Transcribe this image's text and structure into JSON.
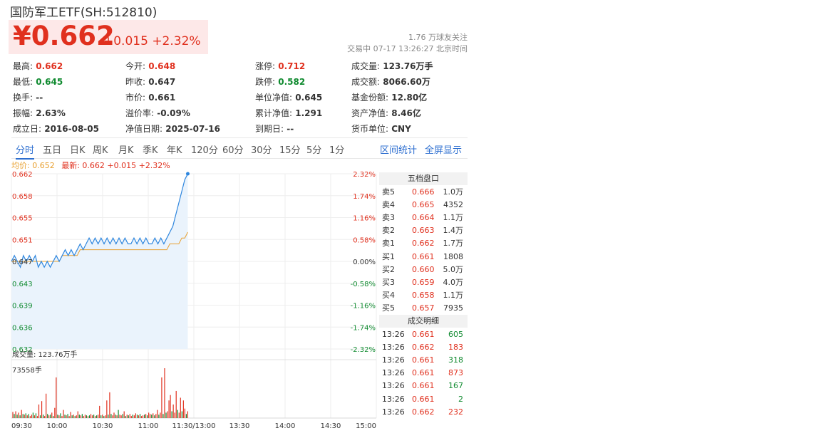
{
  "header": {
    "title": "国防军工ETF(SH:512810)",
    "price": "¥0.662",
    "change": "+0.015 +2.32%",
    "followers": "1.76 万球友关注",
    "status": "交易中 07-17 13:26:27 北京时间"
  },
  "quote": [
    [
      {
        "label": "最高:",
        "value": "0.662",
        "color": "red"
      },
      {
        "label": "今开:",
        "value": "0.648",
        "color": "red"
      },
      {
        "label": "涨停:",
        "value": "0.712",
        "color": "red"
      },
      {
        "label": "成交量:",
        "value": "123.76万手",
        "color": ""
      }
    ],
    [
      {
        "label": "最低:",
        "value": "0.645",
        "color": "green"
      },
      {
        "label": "昨收:",
        "value": "0.647",
        "color": ""
      },
      {
        "label": "跌停:",
        "value": "0.582",
        "color": "green"
      },
      {
        "label": "成交额:",
        "value": "8066.60万",
        "color": ""
      }
    ],
    [
      {
        "label": "换手:",
        "value": "--",
        "color": ""
      },
      {
        "label": "市价:",
        "value": "0.661",
        "color": ""
      },
      {
        "label": "单位净值:",
        "value": "0.645",
        "color": ""
      },
      {
        "label": "基金份额:",
        "value": "12.80亿",
        "color": ""
      }
    ],
    [
      {
        "label": "振幅:",
        "value": "2.63%",
        "color": ""
      },
      {
        "label": "溢价率:",
        "value": "-0.09%",
        "color": ""
      },
      {
        "label": "累计净值:",
        "value": "1.291",
        "color": ""
      },
      {
        "label": "资产净值:",
        "value": "8.46亿",
        "color": ""
      }
    ],
    [
      {
        "label": "成立日:",
        "value": "2016-08-05",
        "color": ""
      },
      {
        "label": "净值日期:",
        "value": "2025-07-16",
        "color": ""
      },
      {
        "label": "到期日:",
        "value": "--",
        "color": ""
      },
      {
        "label": "货币单位:",
        "value": "CNY",
        "color": ""
      }
    ]
  ],
  "tabs": [
    "分时",
    "五日",
    "日K",
    "周K",
    "月K",
    "季K",
    "年K",
    "120分",
    "60分",
    "30分",
    "15分",
    "5分",
    "1分"
  ],
  "tabs_right": [
    "区间统计",
    "全屏显示"
  ],
  "legend": {
    "avg": "均价: 0.652",
    "last": "最新: 0.662 +0.015 +2.32%"
  },
  "chart_data": {
    "type": "line",
    "price_axis": [
      "0.662",
      "0.658",
      "0.655",
      "0.651",
      "0.647",
      "0.643",
      "0.639",
      "0.636",
      "0.632"
    ],
    "pct_axis": [
      "2.32%",
      "1.74%",
      "1.16%",
      "0.58%",
      "0.00%",
      "-0.58%",
      "-1.16%",
      "-1.74%",
      "-2.32%"
    ],
    "ylim": [
      0.632,
      0.662
    ],
    "x_ticks": [
      "09:30",
      "10:00",
      "10:30",
      "11:00",
      "11:30/13:00",
      "13:30",
      "14:00",
      "14:30",
      "15:00"
    ],
    "price_series": [
      0.647,
      0.648,
      0.647,
      0.646,
      0.648,
      0.647,
      0.648,
      0.647,
      0.648,
      0.646,
      0.647,
      0.646,
      0.647,
      0.646,
      0.647,
      0.648,
      0.647,
      0.648,
      0.649,
      0.648,
      0.649,
      0.648,
      0.649,
      0.65,
      0.649,
      0.65,
      0.651,
      0.65,
      0.651,
      0.65,
      0.651,
      0.65,
      0.651,
      0.65,
      0.651,
      0.65,
      0.651,
      0.65,
      0.651,
      0.65,
      0.65,
      0.651,
      0.65,
      0.651,
      0.65,
      0.651,
      0.65,
      0.65,
      0.651,
      0.65,
      0.651,
      0.65,
      0.651,
      0.652,
      0.653,
      0.655,
      0.657,
      0.659,
      0.661,
      0.662
    ],
    "avg_series": [
      0.647,
      0.647,
      0.647,
      0.647,
      0.647,
      0.647,
      0.647,
      0.647,
      0.647,
      0.647,
      0.647,
      0.647,
      0.647,
      0.647,
      0.647,
      0.647,
      0.647,
      0.648,
      0.648,
      0.648,
      0.648,
      0.648,
      0.648,
      0.649,
      0.649,
      0.649,
      0.649,
      0.649,
      0.649,
      0.649,
      0.649,
      0.649,
      0.649,
      0.649,
      0.649,
      0.649,
      0.649,
      0.649,
      0.649,
      0.649,
      0.649,
      0.649,
      0.649,
      0.649,
      0.649,
      0.649,
      0.649,
      0.649,
      0.649,
      0.649,
      0.649,
      0.649,
      0.649,
      0.65,
      0.65,
      0.65,
      0.65,
      0.651,
      0.651,
      0.652
    ],
    "volume_label": "成交量: 123.76万手",
    "volume_max_label": "73558手",
    "volume_max": 73558,
    "volume": [
      [
        9000,
        "r"
      ],
      [
        6000,
        "g"
      ],
      [
        10000,
        "r"
      ],
      [
        5000,
        "g"
      ],
      [
        8000,
        "r"
      ],
      [
        4000,
        "g"
      ],
      [
        12000,
        "r"
      ],
      [
        6000,
        "g"
      ],
      [
        5000,
        "r"
      ],
      [
        7000,
        "g"
      ],
      [
        4000,
        "r"
      ],
      [
        6000,
        "g"
      ],
      [
        3000,
        "r"
      ],
      [
        5000,
        "r"
      ],
      [
        8000,
        "g"
      ],
      [
        4000,
        "r"
      ],
      [
        7000,
        "g"
      ],
      [
        3000,
        "r"
      ],
      [
        20000,
        "r"
      ],
      [
        4000,
        "g"
      ],
      [
        25000,
        "r"
      ],
      [
        5000,
        "g"
      ],
      [
        3000,
        "r"
      ],
      [
        36000,
        "r"
      ],
      [
        6000,
        "g"
      ],
      [
        4000,
        "r"
      ],
      [
        5000,
        "g"
      ],
      [
        8000,
        "r"
      ],
      [
        3000,
        "g"
      ],
      [
        15000,
        "r"
      ],
      [
        60000,
        "r"
      ],
      [
        5000,
        "g"
      ],
      [
        4000,
        "r"
      ],
      [
        7000,
        "g"
      ],
      [
        3000,
        "r"
      ],
      [
        12000,
        "r"
      ],
      [
        5000,
        "g"
      ],
      [
        4000,
        "r"
      ],
      [
        6000,
        "g"
      ],
      [
        3000,
        "r"
      ],
      [
        9000,
        "r"
      ],
      [
        4000,
        "g"
      ],
      [
        5000,
        "r"
      ],
      [
        3000,
        "g"
      ],
      [
        4000,
        "r"
      ],
      [
        10000,
        "r"
      ],
      [
        5000,
        "g"
      ],
      [
        4000,
        "r"
      ],
      [
        6000,
        "g"
      ],
      [
        3000,
        "r"
      ],
      [
        5000,
        "r"
      ],
      [
        4000,
        "g"
      ],
      [
        3000,
        "r"
      ],
      [
        4000,
        "g"
      ],
      [
        6000,
        "r"
      ],
      [
        4000,
        "r"
      ],
      [
        5000,
        "g"
      ],
      [
        3000,
        "r"
      ],
      [
        4000,
        "g"
      ],
      [
        5000,
        "r"
      ],
      [
        18000,
        "r"
      ],
      [
        4000,
        "g"
      ],
      [
        5000,
        "r"
      ],
      [
        3000,
        "g"
      ],
      [
        4000,
        "r"
      ],
      [
        26000,
        "r"
      ],
      [
        5000,
        "g"
      ],
      [
        38000,
        "r"
      ],
      [
        6000,
        "g"
      ],
      [
        4000,
        "r"
      ],
      [
        8000,
        "r"
      ],
      [
        5000,
        "g"
      ],
      [
        4000,
        "r"
      ],
      [
        12000,
        "g"
      ],
      [
        5000,
        "r"
      ],
      [
        4000,
        "r"
      ],
      [
        6000,
        "g"
      ],
      [
        10000,
        "r"
      ],
      [
        3000,
        "g"
      ],
      [
        5000,
        "r"
      ],
      [
        4000,
        "g"
      ],
      [
        6000,
        "r"
      ],
      [
        3000,
        "r"
      ],
      [
        5000,
        "g"
      ],
      [
        4000,
        "r"
      ],
      [
        7000,
        "r"
      ],
      [
        5000,
        "g"
      ],
      [
        4000,
        "r"
      ],
      [
        6000,
        "g"
      ],
      [
        3000,
        "r"
      ],
      [
        4000,
        "r"
      ],
      [
        5000,
        "g"
      ],
      [
        6000,
        "r"
      ],
      [
        4000,
        "g"
      ],
      [
        8000,
        "r"
      ],
      [
        6000,
        "r"
      ],
      [
        5000,
        "g"
      ],
      [
        7000,
        "r"
      ],
      [
        4000,
        "g"
      ],
      [
        6000,
        "r"
      ],
      [
        12000,
        "r"
      ],
      [
        5000,
        "g"
      ],
      [
        8000,
        "r"
      ],
      [
        60000,
        "r"
      ],
      [
        6000,
        "g"
      ],
      [
        73558,
        "r"
      ],
      [
        8000,
        "g"
      ],
      [
        10000,
        "r"
      ],
      [
        26000,
        "r"
      ],
      [
        34000,
        "r"
      ],
      [
        10000,
        "g"
      ],
      [
        20000,
        "r"
      ],
      [
        8000,
        "r"
      ],
      [
        40000,
        "r"
      ],
      [
        12000,
        "g"
      ],
      [
        8000,
        "r"
      ],
      [
        30000,
        "r"
      ],
      [
        10000,
        "g"
      ],
      [
        26000,
        "r"
      ],
      [
        14000,
        "r"
      ],
      [
        6000,
        "g"
      ],
      [
        10000,
        "r"
      ]
    ]
  },
  "order_book": {
    "title": "五档盘口",
    "asks": [
      {
        "label": "卖5",
        "price": "0.666",
        "vol": "1.0万"
      },
      {
        "label": "卖4",
        "price": "0.665",
        "vol": "4352"
      },
      {
        "label": "卖3",
        "price": "0.664",
        "vol": "1.1万"
      },
      {
        "label": "卖2",
        "price": "0.663",
        "vol": "1.4万"
      },
      {
        "label": "卖1",
        "price": "0.662",
        "vol": "1.7万"
      }
    ],
    "bids": [
      {
        "label": "买1",
        "price": "0.661",
        "vol": "1808"
      },
      {
        "label": "买2",
        "price": "0.660",
        "vol": "5.0万"
      },
      {
        "label": "买3",
        "price": "0.659",
        "vol": "4.0万"
      },
      {
        "label": "买4",
        "price": "0.658",
        "vol": "1.1万"
      },
      {
        "label": "买5",
        "price": "0.657",
        "vol": "7935"
      }
    ]
  },
  "trades": {
    "title": "成交明细",
    "rows": [
      {
        "time": "13:26",
        "price": "0.661",
        "vol": "605",
        "dir": "green"
      },
      {
        "time": "13:26",
        "price": "0.662",
        "vol": "183",
        "dir": "red"
      },
      {
        "time": "13:26",
        "price": "0.661",
        "vol": "318",
        "dir": "green"
      },
      {
        "time": "13:26",
        "price": "0.661",
        "vol": "873",
        "dir": "red"
      },
      {
        "time": "13:26",
        "price": "0.661",
        "vol": "167",
        "dir": "green"
      },
      {
        "time": "13:26",
        "price": "0.661",
        "vol": "2",
        "dir": "green"
      },
      {
        "time": "13:26",
        "price": "0.662",
        "vol": "232",
        "dir": "red"
      }
    ]
  },
  "colors": {
    "up": "#e0301e",
    "down": "#0f8a2f",
    "line": "#2e86de",
    "avg": "#e8a030",
    "accent": "#2e6fd0"
  }
}
